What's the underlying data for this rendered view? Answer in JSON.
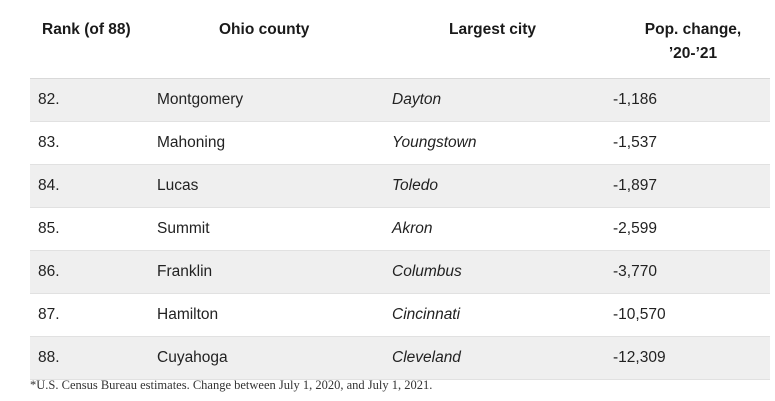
{
  "table": {
    "headers": {
      "rank": "Rank (of 88)",
      "county": "Ohio county",
      "city": "Largest city",
      "pop_line1": "Pop. change,",
      "pop_line2": "’20-’21"
    },
    "rows": [
      {
        "rank": "82.",
        "county": "Montgomery",
        "city": "Dayton",
        "change": "-1,186"
      },
      {
        "rank": "83.",
        "county": "Mahoning",
        "city": "Youngstown",
        "change": "-1,537"
      },
      {
        "rank": "84.",
        "county": "Lucas",
        "city": "Toledo",
        "change": "-1,897"
      },
      {
        "rank": "85.",
        "county": "Summit",
        "city": "Akron",
        "change": "-2,599"
      },
      {
        "rank": "86.",
        "county": "Franklin",
        "city": "Columbus",
        "change": "-3,770"
      },
      {
        "rank": "87.",
        "county": "Hamilton",
        "city": "Cincinnati",
        "change": "-10,570"
      },
      {
        "rank": "88.",
        "county": "Cuyahoga",
        "city": "Cleveland",
        "change": "-12,309"
      }
    ]
  },
  "footnote": "*U.S. Census Bureau estimates. Change between July 1, 2020, and July 1, 2021."
}
